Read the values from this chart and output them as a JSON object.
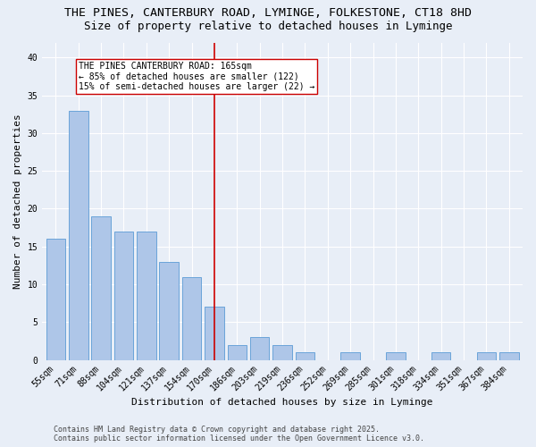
{
  "title1": "THE PINES, CANTERBURY ROAD, LYMINGE, FOLKESTONE, CT18 8HD",
  "title2": "Size of property relative to detached houses in Lyminge",
  "xlabel": "Distribution of detached houses by size in Lyminge",
  "ylabel": "Number of detached properties",
  "categories": [
    "55sqm",
    "71sqm",
    "88sqm",
    "104sqm",
    "121sqm",
    "137sqm",
    "154sqm",
    "170sqm",
    "186sqm",
    "203sqm",
    "219sqm",
    "236sqm",
    "252sqm",
    "269sqm",
    "285sqm",
    "301sqm",
    "318sqm",
    "334sqm",
    "351sqm",
    "367sqm",
    "384sqm"
  ],
  "values": [
    16,
    33,
    19,
    17,
    17,
    13,
    11,
    7,
    2,
    3,
    2,
    1,
    0,
    1,
    0,
    1,
    0,
    1,
    0,
    1,
    1
  ],
  "bar_color": "#aec6e8",
  "bar_edge_color": "#5b9bd5",
  "vline_index": 7,
  "vline_color": "#cc0000",
  "annotation_title": "THE PINES CANTERBURY ROAD: 165sqm",
  "annotation_line2": "← 85% of detached houses are smaller (122)",
  "annotation_line3": "15% of semi-detached houses are larger (22) →",
  "annotation_box_color": "#ffffff",
  "annotation_box_edge": "#cc0000",
  "ylim": [
    0,
    42
  ],
  "yticks": [
    0,
    5,
    10,
    15,
    20,
    25,
    30,
    35,
    40
  ],
  "background_color": "#e8eef7",
  "footer1": "Contains HM Land Registry data © Crown copyright and database right 2025.",
  "footer2": "Contains public sector information licensed under the Open Government Licence v3.0.",
  "grid_color": "#ffffff",
  "title_fontsize": 9.5,
  "subtitle_fontsize": 9,
  "axis_label_fontsize": 8,
  "tick_fontsize": 7,
  "annotation_fontsize": 7,
  "footer_fontsize": 6
}
